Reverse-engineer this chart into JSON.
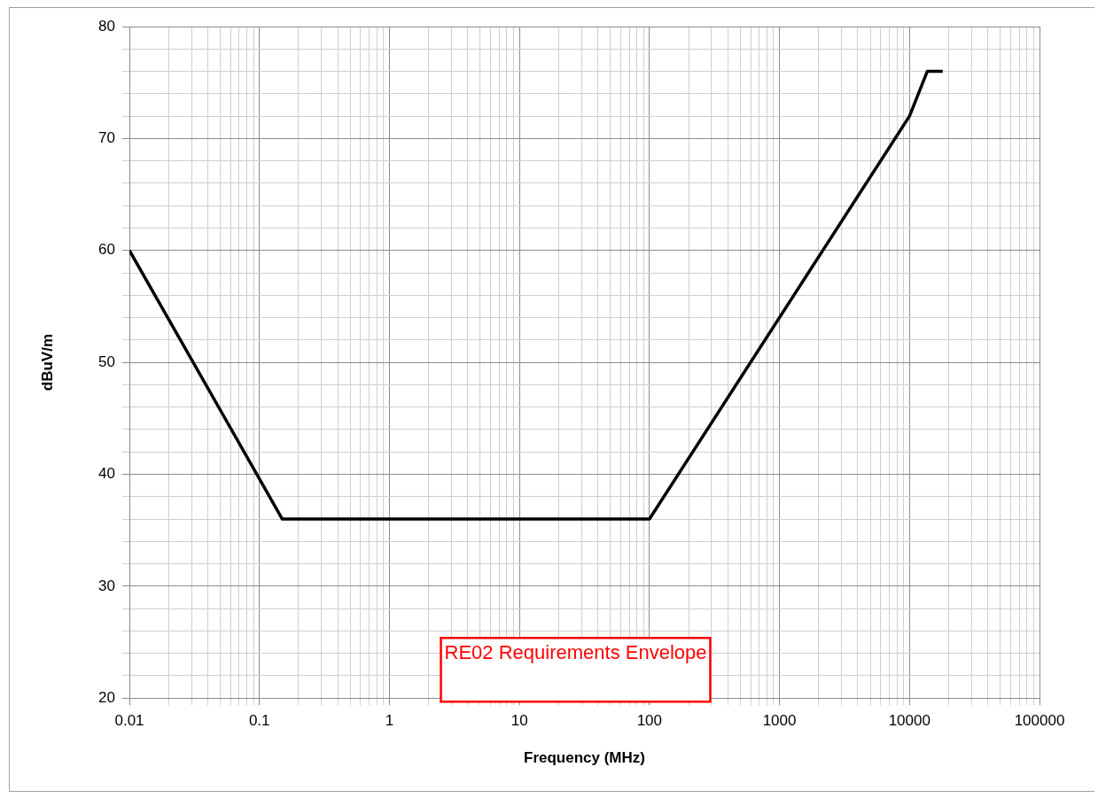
{
  "chart_data": {
    "type": "line",
    "xlabel": "Frequency (MHz)",
    "ylabel": "dBuV/m",
    "annotations": [
      "RE02 Requirements Envelope"
    ],
    "log": "x",
    "grid": true,
    "legend": false,
    "marker": "none",
    "line_style": "solid",
    "x": [
      0.01,
      0.15,
      100,
      10000,
      13700,
      18000
    ],
    "series": [
      {
        "color": "#000000",
        "values": [
          60,
          36,
          36,
          72,
          76,
          76
        ]
      }
    ],
    "xlim": [
      0.01,
      100000
    ],
    "xticks": [
      0.01,
      {
        "value": 0.02,
        "label": null
      },
      {
        "value": 0.03,
        "label": null
      },
      {
        "value": 0.04,
        "label": null
      },
      {
        "value": 0.05,
        "label": null
      },
      {
        "value": 0.06,
        "label": null
      },
      {
        "value": 0.07,
        "label": null
      },
      {
        "value": 0.08,
        "label": null
      },
      {
        "value": 0.09,
        "label": null
      },
      0.1,
      {
        "value": 0.2,
        "label": null
      },
      {
        "value": 0.3,
        "label": null
      },
      {
        "value": 0.4,
        "label": null
      },
      {
        "value": 0.5,
        "label": null
      },
      {
        "value": 0.6,
        "label": null
      },
      {
        "value": 0.7,
        "label": null
      },
      {
        "value": 0.8,
        "label": null
      },
      {
        "value": 0.9,
        "label": null
      },
      1,
      {
        "value": 2,
        "label": null
      },
      {
        "value": 3,
        "label": null
      },
      {
        "value": 4,
        "label": null
      },
      {
        "value": 5,
        "label": null
      },
      {
        "value": 6,
        "label": null
      },
      {
        "value": 7,
        "label": null
      },
      {
        "value": 8,
        "label": null
      },
      {
        "value": 9,
        "label": null
      },
      10,
      {
        "value": 20,
        "label": null
      },
      {
        "value": 30,
        "label": null
      },
      {
        "value": 40,
        "label": null
      },
      {
        "value": 50,
        "label": null
      },
      {
        "value": 60,
        "label": null
      },
      {
        "value": 70,
        "label": null
      },
      {
        "value": 80,
        "label": null
      },
      {
        "value": 90,
        "label": null
      },
      100,
      {
        "value": 200,
        "label": null
      },
      {
        "value": 300,
        "label": null
      },
      {
        "value": 400,
        "label": null
      },
      {
        "value": 500,
        "label": null
      },
      {
        "value": 600,
        "label": null
      },
      {
        "value": 700,
        "label": null
      },
      {
        "value": 800,
        "label": null
      },
      {
        "value": 900,
        "label": null
      },
      1000,
      {
        "value": 2000,
        "label": null
      },
      {
        "value": 3000,
        "label": null
      },
      {
        "value": 4000,
        "label": null
      },
      {
        "value": 5000,
        "label": null
      },
      {
        "value": 6000,
        "label": null
      },
      {
        "value": 7000,
        "label": null
      },
      {
        "value": 8000,
        "label": null
      },
      {
        "value": 9000,
        "label": null
      },
      10000,
      {
        "value": 20000,
        "label": null
      },
      {
        "value": 30000,
        "label": null
      },
      {
        "value": 40000,
        "label": null
      },
      {
        "value": 50000,
        "label": null
      },
      {
        "value": 60000,
        "label": null
      },
      {
        "value": 70000,
        "label": null
      },
      {
        "value": 80000,
        "label": null
      },
      {
        "value": 90000,
        "label": null
      },
      100000
    ],
    "ylim": [
      20,
      80
    ],
    "yticks": [
      20,
      {
        "value": 22,
        "label": null
      },
      {
        "value": 24,
        "label": null
      },
      {
        "value": 26,
        "label": null
      },
      {
        "value": 28,
        "label": null
      },
      30,
      {
        "value": 32,
        "label": null
      },
      {
        "value": 34,
        "label": null
      },
      {
        "value": 36,
        "label": null
      },
      {
        "value": 38,
        "label": null
      },
      40,
      {
        "value": 42,
        "label": null
      },
      {
        "value": 44,
        "label": null
      },
      {
        "value": 46,
        "label": null
      },
      {
        "value": 48,
        "label": null
      },
      50,
      {
        "value": 52,
        "label": null
      },
      {
        "value": 54,
        "label": null
      },
      {
        "value": 56,
        "label": null
      },
      {
        "value": 58,
        "label": null
      },
      60,
      {
        "value": 62,
        "label": null
      },
      {
        "value": 64,
        "label": null
      },
      {
        "value": 66,
        "label": null
      },
      {
        "value": 68,
        "label": null
      },
      70,
      {
        "value": 72,
        "label": null
      },
      {
        "value": 74,
        "label": null
      },
      {
        "value": 76,
        "label": null
      },
      {
        "value": 78,
        "label": null
      },
      80
    ]
  }
}
